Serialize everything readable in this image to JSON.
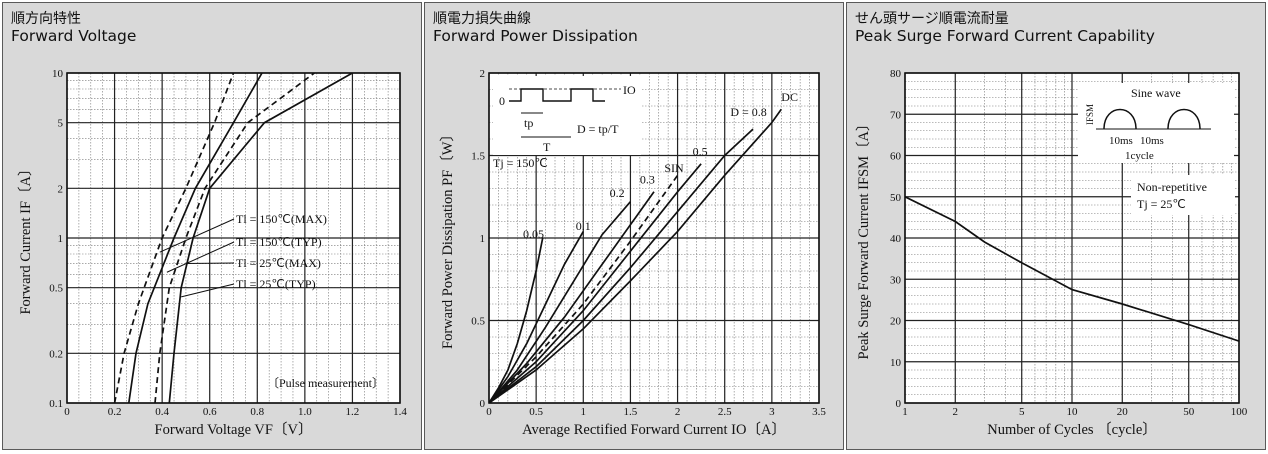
{
  "panels": [
    {
      "title_jp": "順方向特性",
      "title_en": "Forward Voltage"
    },
    {
      "title_jp": "順電力損失曲線",
      "title_en": "Forward Power Dissipation"
    },
    {
      "title_jp": "せん頭サージ順電流耐量",
      "title_en": "Peak Surge Forward Current Capability"
    }
  ],
  "chart_data": [
    {
      "type": "line",
      "title": "Forward Voltage",
      "xlabel": "Forward Voltage  VF〔V〕",
      "ylabel": "Forward Current  IF〔A〕",
      "xlim": [
        0,
        1.4
      ],
      "ylim": [
        0.1,
        10
      ],
      "y_scale": "log",
      "grid": true,
      "x_ticks": [
        0,
        0.2,
        0.4,
        0.6,
        0.8,
        1.0,
        1.2,
        1.4
      ],
      "x_tick_labels": [
        "0",
        "0.2",
        "0.4",
        "0.6",
        "0.8",
        "1.0",
        "1.2",
        "1.4"
      ],
      "y_ticks": [
        0.1,
        0.2,
        0.5,
        1,
        2,
        5,
        10
      ],
      "y_tick_labels": [
        "0.1",
        "0.2",
        "0.5",
        "1",
        "2",
        "5",
        "10"
      ],
      "series": [
        {
          "name": "Tl = 150℃(MAX)",
          "style": "dashed",
          "points": [
            [
              0.2,
              0.1
            ],
            [
              0.24,
              0.2
            ],
            [
              0.3,
              0.4
            ],
            [
              0.4,
              1.0
            ],
            [
              0.5,
              2.0
            ],
            [
              0.62,
              5.0
            ],
            [
              0.7,
              10
            ]
          ]
        },
        {
          "name": "Tl = 150℃(TYP)",
          "style": "solid",
          "points": [
            [
              0.26,
              0.1
            ],
            [
              0.29,
              0.2
            ],
            [
              0.34,
              0.4
            ],
            [
              0.45,
              1.0
            ],
            [
              0.54,
              2.0
            ],
            [
              0.7,
              5.0
            ],
            [
              0.82,
              10
            ]
          ]
        },
        {
          "name": "Tl = 25℃(MAX)",
          "style": "dashed",
          "points": [
            [
              0.37,
              0.1
            ],
            [
              0.39,
              0.2
            ],
            [
              0.43,
              0.5
            ],
            [
              0.5,
              1.0
            ],
            [
              0.58,
              2.0
            ],
            [
              0.76,
              5.0
            ],
            [
              1.04,
              10
            ]
          ]
        },
        {
          "name": "Tl = 25℃(TYP)",
          "style": "solid",
          "points": [
            [
              0.43,
              0.1
            ],
            [
              0.45,
              0.2
            ],
            [
              0.48,
              0.5
            ],
            [
              0.53,
              1.0
            ],
            [
              0.6,
              2.0
            ],
            [
              0.83,
              5.0
            ],
            [
              1.2,
              10
            ]
          ]
        }
      ],
      "legend_lines": [
        "Tl = 150℃(MAX)",
        "Tl = 150℃(TYP)",
        "Tl = 25℃(MAX)",
        "Tl = 25℃(TYP)"
      ],
      "note": "〔Pulse measurement〕"
    },
    {
      "type": "line",
      "title": "Forward Power Dissipation",
      "xlabel": "Average Rectified Forward Current  IO〔A〕",
      "ylabel": "Forward Power Dissipation  PF〔W〕",
      "xlim": [
        0,
        3.5
      ],
      "ylim": [
        0,
        2
      ],
      "grid": true,
      "x_ticks": [
        0,
        0.5,
        1,
        1.5,
        2,
        2.5,
        3,
        3.5
      ],
      "x_tick_labels": [
        "0",
        "0.5",
        "1",
        "1.5",
        "2",
        "2.5",
        "3",
        "3.5"
      ],
      "y_ticks": [
        0,
        0.5,
        1,
        1.5,
        2
      ],
      "y_tick_labels": [
        "0",
        "0.5",
        "1",
        "1.5",
        "2"
      ],
      "series": [
        {
          "name": "0.05",
          "style": "solid",
          "points": [
            [
              0,
              0
            ],
            [
              0.1,
              0.09
            ],
            [
              0.2,
              0.2
            ],
            [
              0.3,
              0.36
            ],
            [
              0.4,
              0.56
            ],
            [
              0.5,
              0.8
            ],
            [
              0.57,
              1.0
            ]
          ]
        },
        {
          "name": "0.1",
          "style": "solid",
          "points": [
            [
              0,
              0
            ],
            [
              0.2,
              0.16
            ],
            [
              0.4,
              0.36
            ],
            [
              0.6,
              0.6
            ],
            [
              0.8,
              0.84
            ],
            [
              1.0,
              1.04
            ]
          ]
        },
        {
          "name": "0.2",
          "style": "solid",
          "points": [
            [
              0,
              0
            ],
            [
              0.3,
              0.2
            ],
            [
              0.6,
              0.46
            ],
            [
              0.9,
              0.74
            ],
            [
              1.2,
              1.02
            ],
            [
              1.5,
              1.22
            ]
          ]
        },
        {
          "name": "0.3",
          "style": "solid",
          "points": [
            [
              0,
              0
            ],
            [
              0.4,
              0.24
            ],
            [
              0.8,
              0.52
            ],
            [
              1.2,
              0.84
            ],
            [
              1.5,
              1.08
            ],
            [
              1.75,
              1.28
            ]
          ]
        },
        {
          "name": "SIN",
          "style": "dashed",
          "points": [
            [
              0,
              0
            ],
            [
              0.5,
              0.28
            ],
            [
              1.0,
              0.6
            ],
            [
              1.5,
              0.98
            ],
            [
              1.85,
              1.26
            ],
            [
              2.0,
              1.38
            ]
          ]
        },
        {
          "name": "0.5",
          "style": "solid",
          "points": [
            [
              0,
              0
            ],
            [
              0.5,
              0.25
            ],
            [
              1.0,
              0.56
            ],
            [
              1.5,
              0.92
            ],
            [
              2.0,
              1.28
            ],
            [
              2.25,
              1.45
            ]
          ]
        },
        {
          "name": "D = 0.8",
          "style": "solid",
          "points": [
            [
              0,
              0
            ],
            [
              0.5,
              0.22
            ],
            [
              1.0,
              0.5
            ],
            [
              1.5,
              0.82
            ],
            [
              2.0,
              1.16
            ],
            [
              2.5,
              1.5
            ],
            [
              2.8,
              1.66
            ]
          ]
        },
        {
          "name": "DC",
          "style": "solid",
          "points": [
            [
              0,
              0
            ],
            [
              0.5,
              0.2
            ],
            [
              1.0,
              0.45
            ],
            [
              1.5,
              0.74
            ],
            [
              2.0,
              1.04
            ],
            [
              2.5,
              1.38
            ],
            [
              3.0,
              1.7
            ],
            [
              3.1,
              1.78
            ]
          ]
        }
      ],
      "inset": {
        "level_zero": "0",
        "io_label": "IO",
        "tp": "tp",
        "period": "T",
        "duty_formula": "D = tp/T"
      },
      "condition": "Tj = 150℃"
    },
    {
      "type": "line",
      "title": "Peak Surge Forward Current Capability",
      "xlabel": "Number of Cycles 〔cycle〕",
      "ylabel": "Peak Surge Forward Current  IFSM〔A〕",
      "xlim": [
        1,
        100
      ],
      "x_scale": "log",
      "ylim": [
        0,
        80
      ],
      "grid": true,
      "x_ticks": [
        1,
        2,
        5,
        10,
        20,
        50,
        100
      ],
      "x_tick_labels": [
        "1",
        "2",
        "5",
        "10",
        "20",
        "50",
        "100"
      ],
      "y_ticks": [
        0,
        10,
        20,
        30,
        40,
        50,
        60,
        70,
        80
      ],
      "y_tick_labels": [
        "0",
        "10",
        "20",
        "30",
        "40",
        "50",
        "60",
        "70",
        "80"
      ],
      "series": [
        {
          "name": "IFSM",
          "style": "solid",
          "points": [
            [
              1,
              50
            ],
            [
              2,
              44
            ],
            [
              3,
              39
            ],
            [
              5,
              34
            ],
            [
              10,
              27.5
            ],
            [
              20,
              24
            ],
            [
              50,
              19
            ],
            [
              100,
              15
            ]
          ]
        }
      ],
      "inset": {
        "title": "Sine wave",
        "ifsm": "IFSM",
        "half1": "10ms",
        "half2": "10ms",
        "cycle": "1cycle"
      },
      "condition_lines": [
        "Non-repetitive",
        "Tj = 25℃"
      ]
    }
  ]
}
